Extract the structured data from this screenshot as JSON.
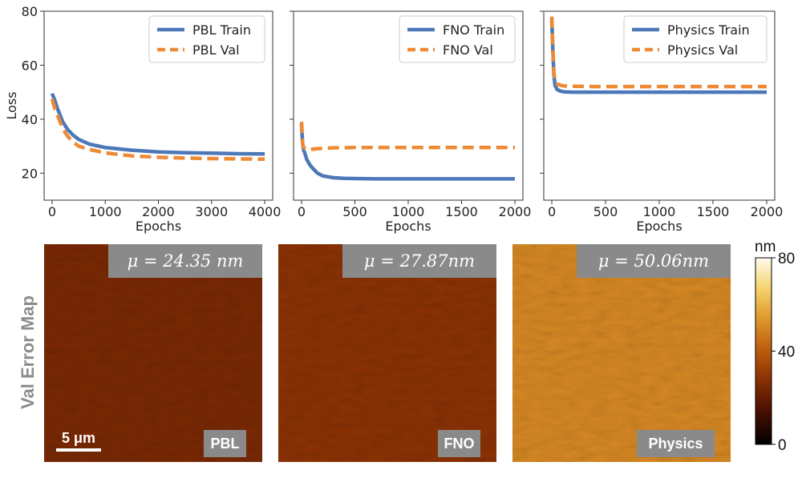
{
  "chart_data": [
    {
      "type": "line",
      "ylabel": "Loss",
      "xlabel": "Epochs",
      "xlim": [
        -150,
        4150
      ],
      "ylim": [
        10,
        80
      ],
      "xticks": [
        0,
        1000,
        2000,
        3000,
        4000
      ],
      "yticks": [
        20,
        40,
        60,
        80
      ],
      "legend_position": "top-right",
      "series": [
        {
          "name": "PBL Train",
          "color": "#4c78b8",
          "style": "solid",
          "x": [
            0,
            20,
            50,
            100,
            150,
            200,
            300,
            400,
            500,
            700,
            1000,
            1500,
            2000,
            2500,
            3000,
            3500,
            4000
          ],
          "y": [
            49.5,
            48.5,
            47,
            44,
            41.5,
            39,
            36,
            34,
            32.5,
            30.8,
            29.5,
            28.5,
            27.9,
            27.6,
            27.4,
            27.2,
            27.1
          ]
        },
        {
          "name": "PBL Val",
          "color": "#ee8a35",
          "style": "dashed",
          "x": [
            0,
            20,
            50,
            100,
            150,
            200,
            300,
            400,
            500,
            700,
            1000,
            1500,
            2000,
            2500,
            3000,
            3500,
            4000
          ],
          "y": [
            47.5,
            46,
            44,
            41.5,
            39,
            36.5,
            33.5,
            31.5,
            30,
            28.8,
            27.5,
            26.4,
            25.9,
            25.6,
            25.4,
            25.3,
            25.2
          ]
        }
      ]
    },
    {
      "type": "line",
      "xlabel": "Epochs",
      "xlim": [
        -75,
        2075
      ],
      "ylim": [
        10,
        80
      ],
      "xticks": [
        0,
        500,
        1000,
        1500,
        2000
      ],
      "legend_position": "top-right",
      "series": [
        {
          "name": "FNO Train",
          "color": "#4c78b8",
          "style": "solid",
          "x": [
            0,
            10,
            20,
            30,
            50,
            80,
            100,
            150,
            200,
            300,
            400,
            500,
            700,
            1000,
            1500,
            2000
          ],
          "y": [
            38,
            31,
            28.5,
            27.5,
            25,
            23,
            22,
            20,
            19,
            18.3,
            18.1,
            18,
            17.9,
            17.9,
            17.9,
            17.9
          ]
        },
        {
          "name": "FNO Val",
          "color": "#ee8a35",
          "style": "dashed",
          "x": [
            0,
            10,
            20,
            40,
            80,
            150,
            300,
            500,
            1000,
            1500,
            2000
          ],
          "y": [
            39,
            31,
            29.5,
            29,
            28.8,
            29.1,
            29.4,
            29.5,
            29.5,
            29.5,
            29.5
          ]
        }
      ]
    },
    {
      "type": "line",
      "xlabel": "Epochs",
      "xlim": [
        -75,
        2075
      ],
      "ylim": [
        10,
        80
      ],
      "xticks": [
        0,
        500,
        1000,
        1500,
        2000
      ],
      "legend_position": "top-right",
      "series": [
        {
          "name": "Physics Train",
          "color": "#4c78b8",
          "style": "solid",
          "x": [
            0,
            10,
            20,
            30,
            50,
            80,
            120,
            200,
            400,
            1000,
            2000
          ],
          "y": [
            77,
            65,
            56,
            52.5,
            51,
            50.4,
            50.1,
            50,
            50,
            50,
            50
          ]
        },
        {
          "name": "Physics Val",
          "color": "#ee8a35",
          "style": "dashed",
          "x": [
            0,
            10,
            20,
            30,
            50,
            80,
            120,
            200,
            400,
            1000,
            2000
          ],
          "y": [
            78,
            66,
            57,
            54,
            53,
            52.6,
            52.3,
            52.2,
            52.1,
            52.1,
            52.1
          ]
        }
      ]
    },
    {
      "type": "heatmap",
      "side_label": "Val Error Map",
      "colorbar": {
        "unit": "nm",
        "min": 0,
        "max": 80,
        "ticks": [
          0,
          40,
          80
        ]
      },
      "scalebar_label": "5 μm",
      "maps": [
        {
          "label": "PBL",
          "mean_text": "μ = 24.35 nm",
          "mean": 24.35
        },
        {
          "label": "FNO",
          "mean_text": "μ = 27.87nm",
          "mean": 27.87
        },
        {
          "label": "Physics",
          "mean_text": "μ = 50.06nm",
          "mean": 50.06
        }
      ]
    }
  ]
}
